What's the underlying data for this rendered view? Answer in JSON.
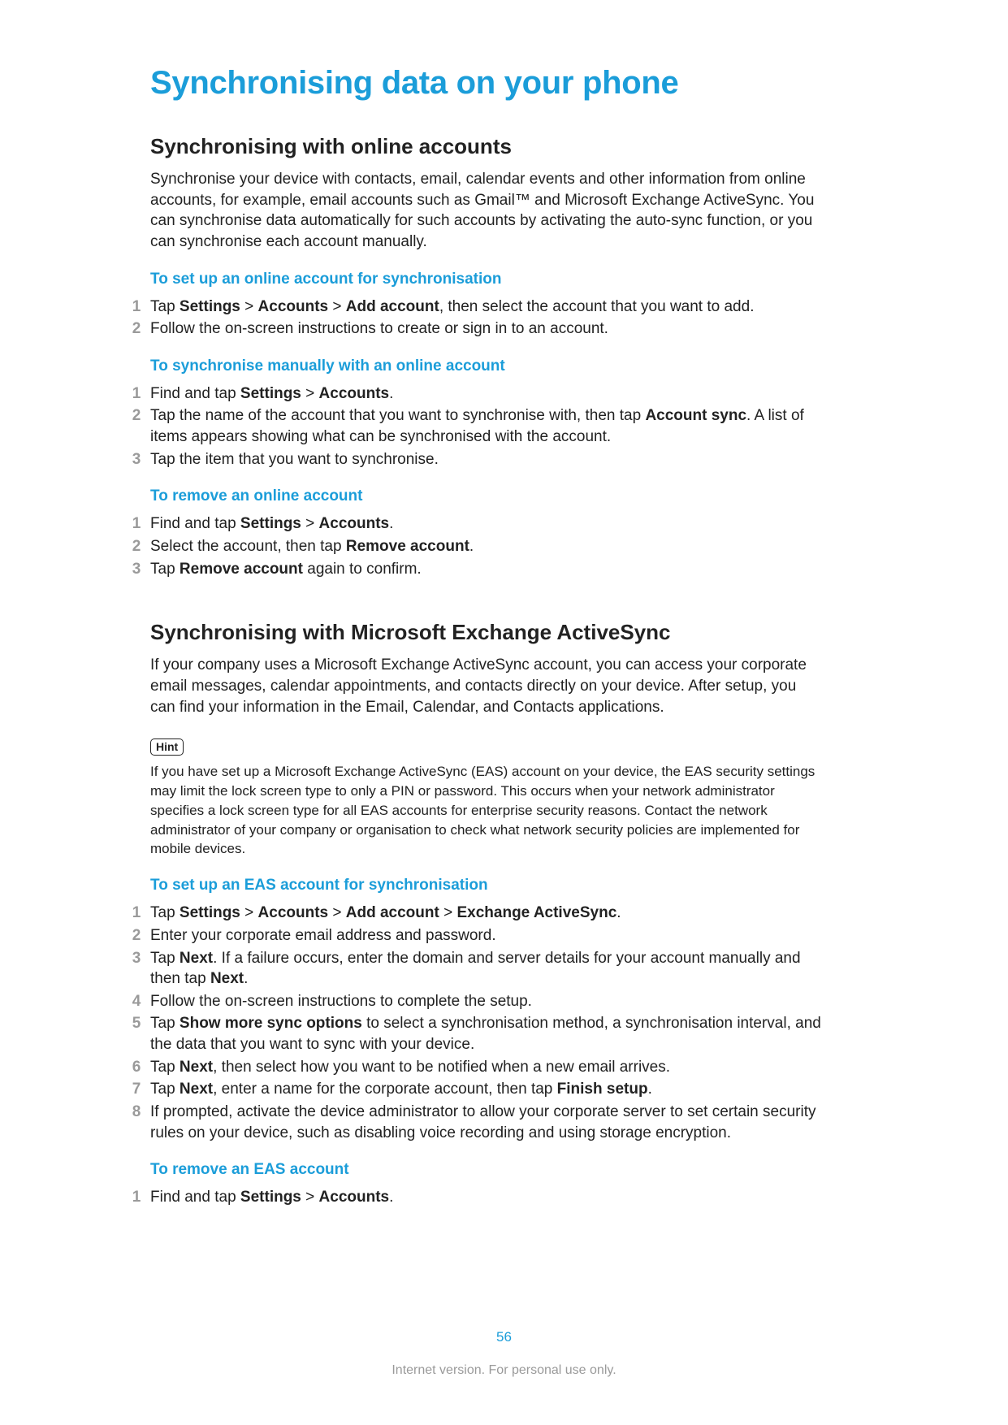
{
  "colors": {
    "accent": "#1b9dd9",
    "body": "#222222",
    "muted": "#9a9a9a",
    "background": "#ffffff"
  },
  "title": "Synchronising data on your phone",
  "section1": {
    "heading": "Synchronising with online accounts",
    "body": "Synchronise your device with contacts, email, calendar events and other information from online accounts, for example, email accounts such as Gmail™ and Microsoft Exchange ActiveSync. You can synchronise data automatically for such accounts by activating the auto-sync function, or you can synchronise each account manually.",
    "sub1": {
      "title": "To set up an online account for synchronisation",
      "steps": [
        "Tap <b>Settings</b> > <b>Accounts</b> > <b>Add account</b>, then select the account that you want to add.",
        "Follow the on-screen instructions to create or sign in to an account."
      ]
    },
    "sub2": {
      "title": "To synchronise manually with an online account",
      "steps": [
        "Find and tap <b>Settings</b> > <b>Accounts</b>.",
        "Tap the name of the account that you want to synchronise with, then tap <b>Account sync</b>. A list of items appears showing what can be synchronised with the account.",
        "Tap the item that you want to synchronise."
      ]
    },
    "sub3": {
      "title": "To remove an online account",
      "steps": [
        "Find and tap <b>Settings</b> > <b>Accounts</b>.",
        "Select the account, then tap <b>Remove account</b>.",
        "Tap <b>Remove account</b> again to confirm."
      ]
    }
  },
  "section2": {
    "heading": "Synchronising with Microsoft Exchange ActiveSync",
    "body": "If your company uses a Microsoft Exchange ActiveSync account, you can access your corporate email messages, calendar appointments, and contacts directly on your device. After setup, you can find your information in the Email, Calendar, and Contacts applications.",
    "hint_label": "Hint",
    "hint_body": "If you have set up a Microsoft Exchange ActiveSync (EAS) account on your device, the EAS security settings may limit the lock screen type to only a PIN or password. This occurs when your network administrator specifies a lock screen type for all EAS accounts for enterprise security reasons. Contact the network administrator of your company or organisation to check what network security policies are implemented for mobile devices.",
    "sub1": {
      "title": "To set up an EAS account for synchronisation",
      "steps": [
        "Tap <b>Settings</b> > <b>Accounts</b> > <b>Add account</b> > <b>Exchange ActiveSync</b>.",
        "Enter your corporate email address and password.",
        "Tap <b>Next</b>. If a failure occurs, enter the domain and server details for your account manually and then tap <b>Next</b>.",
        "Follow the on-screen instructions to complete the setup.",
        "Tap <b>Show more sync options</b> to select a synchronisation method, a synchronisation interval, and the data that you want to sync with your device.",
        "Tap <b>Next</b>, then select how you want to be notified when a new email arrives.",
        "Tap <b>Next</b>, enter a name for the corporate account, then tap <b>Finish setup</b>.",
        "If prompted, activate the device administrator to allow your corporate server to set certain security rules on your device, such as disabling voice recording and using storage encryption."
      ]
    },
    "sub2": {
      "title": "To remove an EAS account",
      "steps": [
        "Find and tap <b>Settings</b> > <b>Accounts</b>."
      ]
    }
  },
  "page_number": "56",
  "footer": "Internet version. For personal use only."
}
